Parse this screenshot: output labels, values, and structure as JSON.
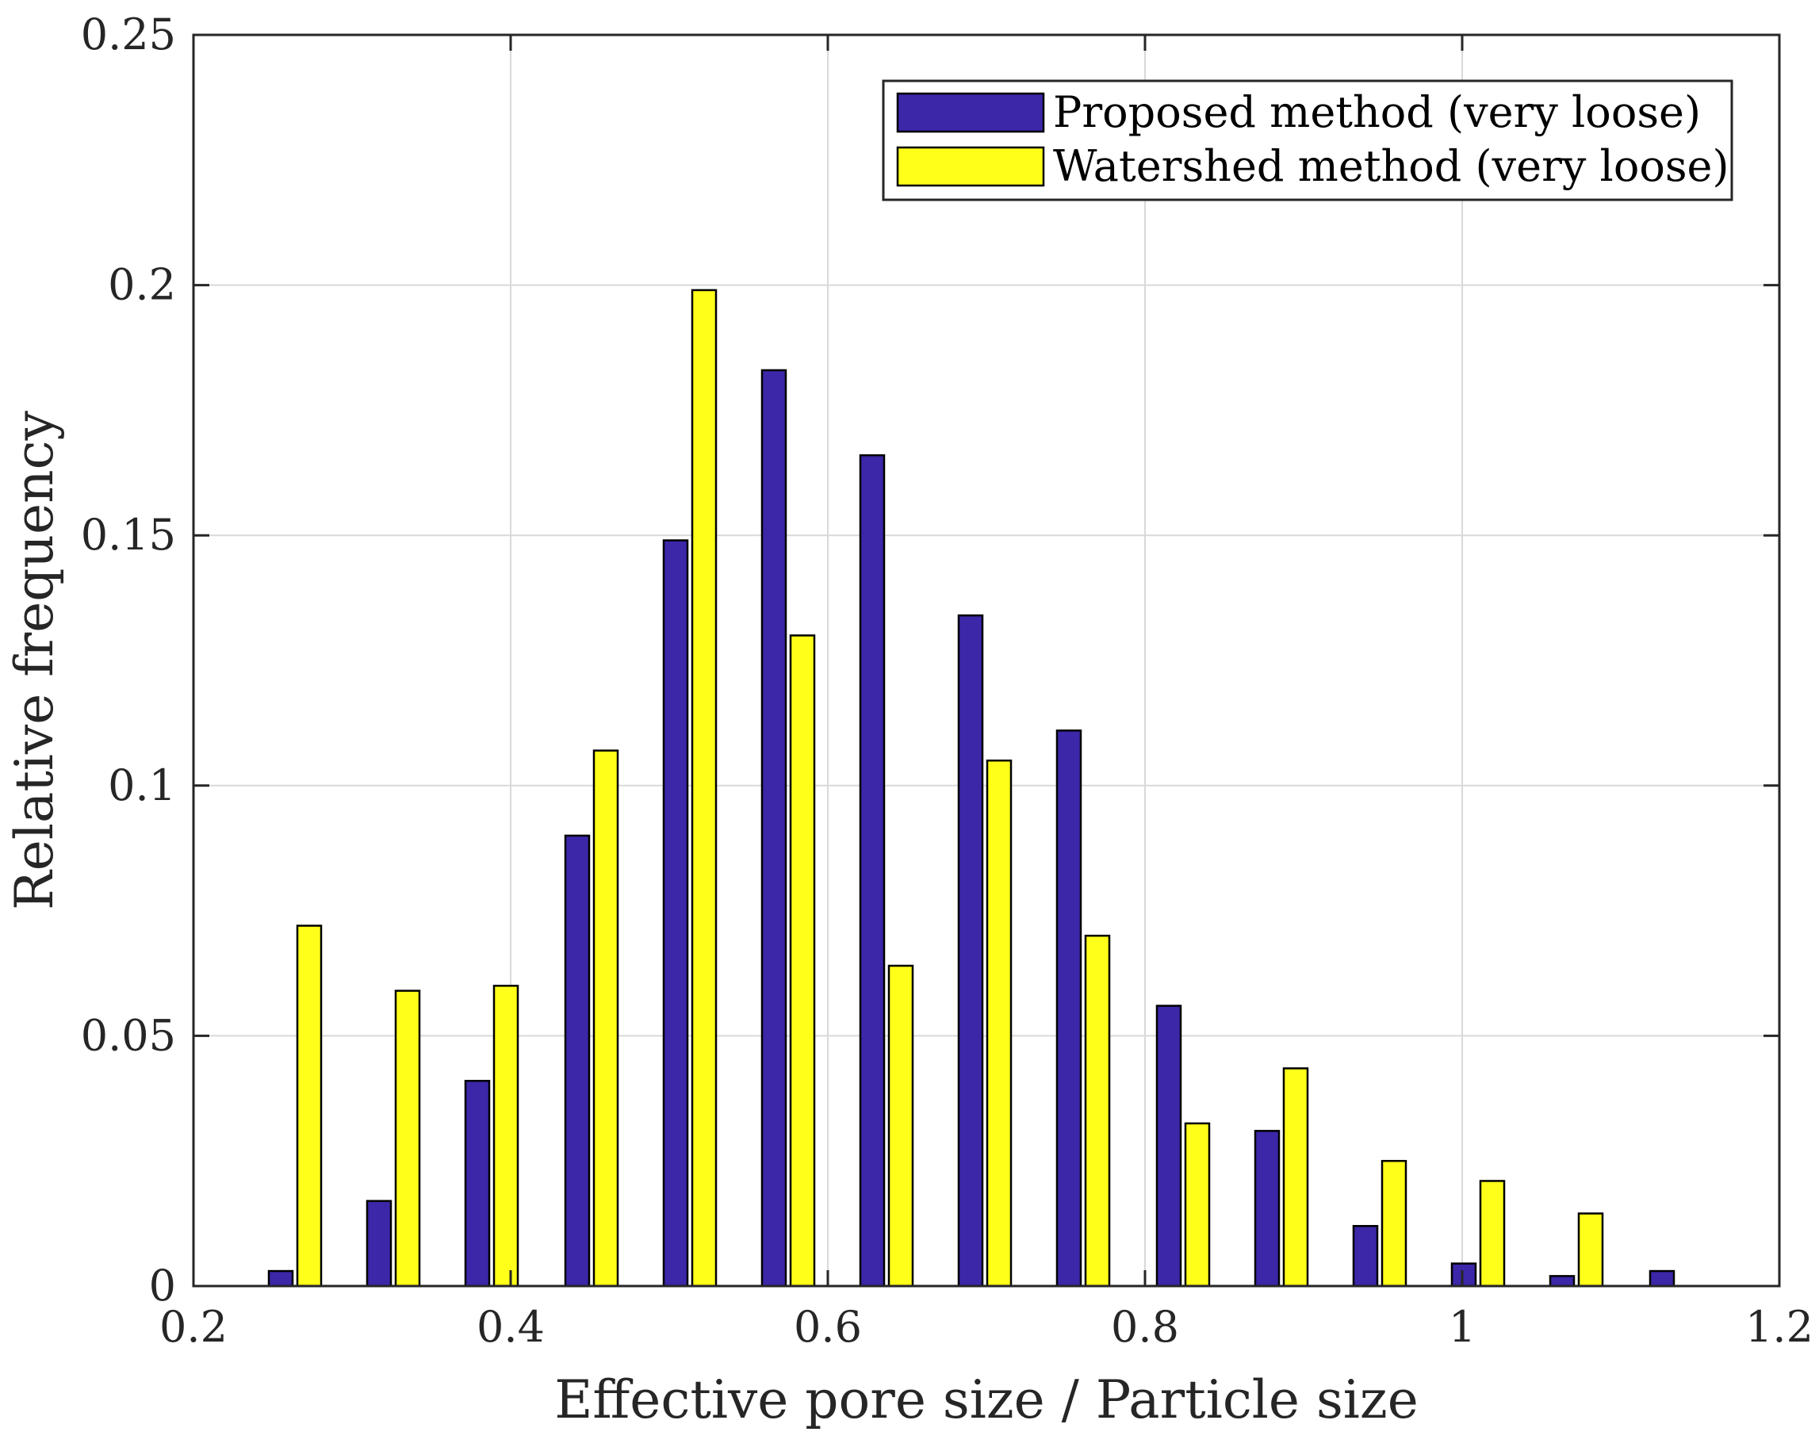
{
  "chart_data": {
    "type": "bar",
    "title": "",
    "xlabel": "Effective pore size / Particle size",
    "ylabel": "Relative frequency",
    "xlim": [
      0.2,
      1.2
    ],
    "ylim": [
      0,
      0.25
    ],
    "grid": true,
    "legend_position": "top-right",
    "x_ticks": [
      0.2,
      0.4,
      0.6,
      0.8,
      1.0,
      1.2
    ],
    "x_tick_labels": [
      "0.2",
      "0.4",
      "0.6",
      "0.8",
      "1",
      "1.2"
    ],
    "y_ticks": [
      0,
      0.05,
      0.1,
      0.15,
      0.2,
      0.25
    ],
    "y_tick_labels": [
      "0",
      "0.05",
      "0.1",
      "0.15",
      "0.2",
      "0.25"
    ],
    "bar_width": 0.015,
    "series": [
      {
        "name": "Proposed method (very loose)",
        "color": "#3b27a8",
        "x": [
          0.255,
          0.317,
          0.379,
          0.442,
          0.504,
          0.566,
          0.628,
          0.69,
          0.752,
          0.815,
          0.877,
          0.939,
          1.001,
          1.063,
          1.126
        ],
        "values": [
          0.003,
          0.017,
          0.041,
          0.09,
          0.149,
          0.183,
          0.166,
          0.134,
          0.111,
          0.056,
          0.031,
          0.012,
          0.0045,
          0.002,
          0.003
        ]
      },
      {
        "name": "Watershed method (very loose)",
        "color": "#ffff1a",
        "x": [
          0.273,
          0.335,
          0.397,
          0.46,
          0.522,
          0.584,
          0.646,
          0.708,
          0.77,
          0.833,
          0.895,
          0.957,
          1.019,
          1.081
        ],
        "values": [
          0.072,
          0.059,
          0.06,
          0.107,
          0.199,
          0.13,
          0.064,
          0.105,
          0.07,
          0.0325,
          0.0435,
          0.025,
          0.021,
          0.0145
        ]
      }
    ]
  }
}
